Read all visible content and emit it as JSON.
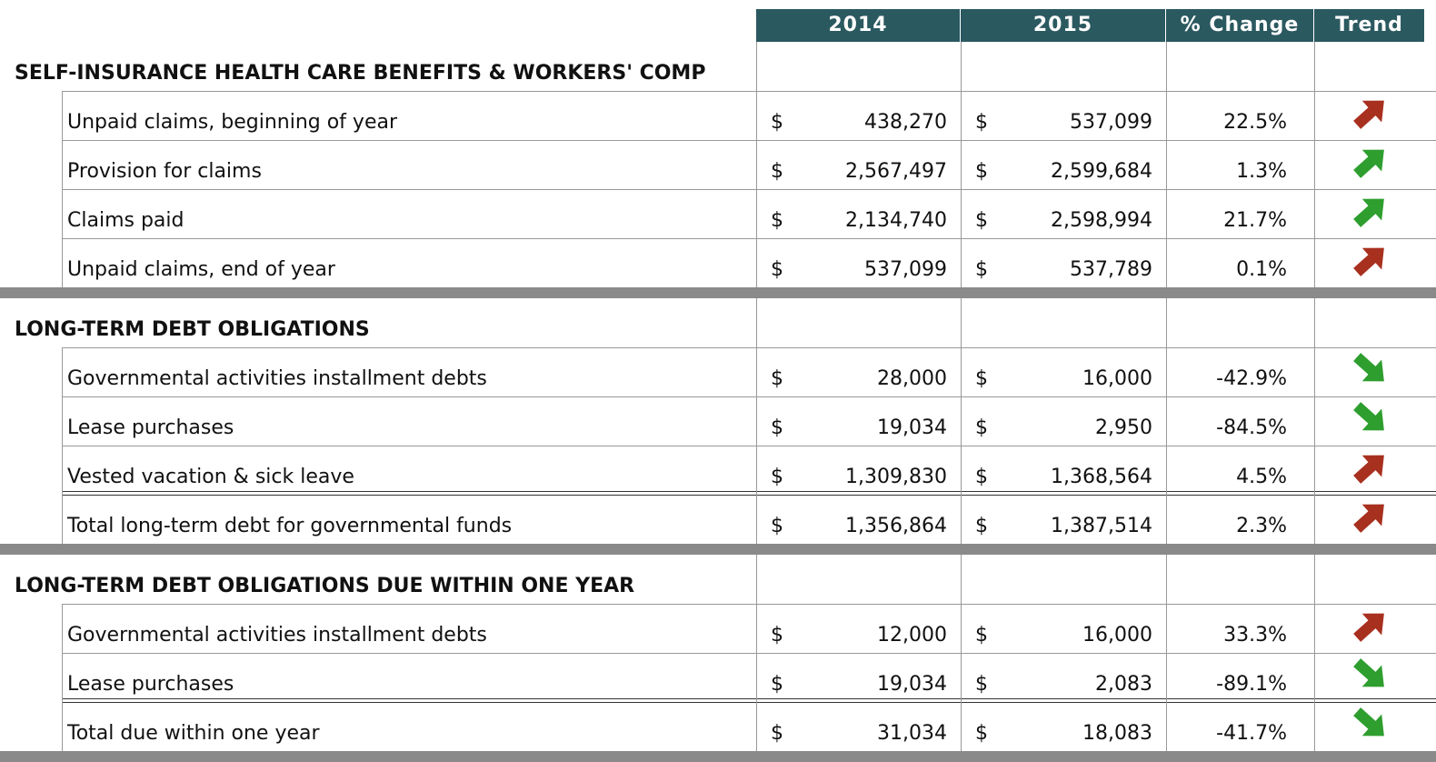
{
  "header": {
    "columns": [
      "2014",
      "2015",
      "% Change",
      "Trend"
    ]
  },
  "currency": "$",
  "trend_colors": {
    "up-red": "#a8301f",
    "up-green": "#2e9e2e",
    "down-green": "#2e9e2e"
  },
  "sections": [
    {
      "title": "SELF-INSURANCE HEALTH CARE BENEFITS & WORKERS' COMP",
      "rows": [
        {
          "label": "Unpaid claims, beginning of year",
          "v2014": "438,270",
          "v2015": "537,099",
          "change": "22.5%",
          "trend": "up-red"
        },
        {
          "label": "Provision for claims",
          "v2014": "2,567,497",
          "v2015": "2,599,684",
          "change": "1.3%",
          "trend": "up-green"
        },
        {
          "label": "Claims paid",
          "v2014": "2,134,740",
          "v2015": "2,598,994",
          "change": "21.7%",
          "trend": "up-green"
        },
        {
          "label": "Unpaid claims, end of year",
          "v2014": "537,099",
          "v2015": "537,789",
          "change": "0.1%",
          "trend": "up-red"
        }
      ]
    },
    {
      "title": "LONG-TERM DEBT OBLIGATIONS",
      "rows": [
        {
          "label": "Governmental activities installment debts",
          "v2014": "28,000",
          "v2015": "16,000",
          "change": "-42.9%",
          "trend": "down-green"
        },
        {
          "label": "Lease purchases",
          "v2014": "19,034",
          "v2015": "2,950",
          "change": "-84.5%",
          "trend": "down-green"
        },
        {
          "label": "Vested vacation & sick leave",
          "v2014": "1,309,830",
          "v2015": "1,368,564",
          "change": "4.5%",
          "trend": "up-red"
        },
        {
          "label": "Total long-term debt for governmental funds",
          "v2014": "1,356,864",
          "v2015": "1,387,514",
          "change": "2.3%",
          "trend": "up-red",
          "double_rule_before": true
        }
      ]
    },
    {
      "title": "LONG-TERM DEBT OBLIGATIONS DUE WITHIN ONE YEAR",
      "rows": [
        {
          "label": "Governmental activities installment debts",
          "v2014": "12,000",
          "v2015": "16,000",
          "change": "33.3%",
          "trend": "up-red"
        },
        {
          "label": "Lease purchases",
          "v2014": "19,034",
          "v2015": "2,083",
          "change": "-89.1%",
          "trend": "down-green"
        },
        {
          "label": "Total due within one year",
          "v2014": "31,034",
          "v2015": "18,083",
          "change": "-41.7%",
          "trend": "down-green",
          "double_rule_before": true
        }
      ]
    }
  ]
}
